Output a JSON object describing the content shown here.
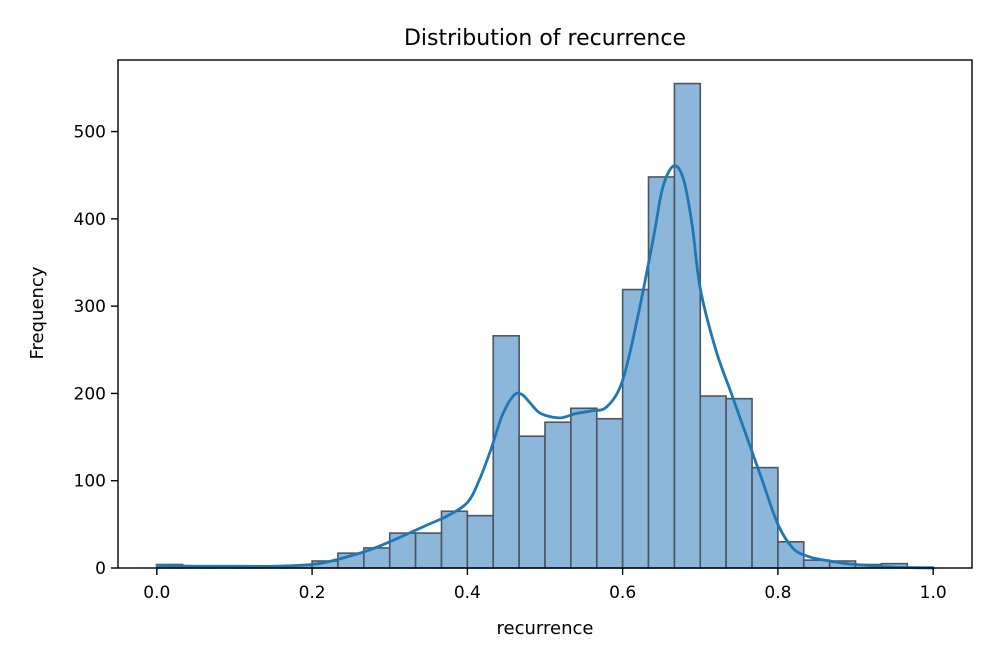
{
  "chart_data": {
    "type": "bar",
    "subtype": "histogram-with-kde",
    "title": "Distribution of recurrence",
    "xlabel": "recurrence",
    "ylabel": "Frequency",
    "xlim": [
      -0.05,
      1.05
    ],
    "ylim": [
      0,
      582
    ],
    "xticks": [
      0.0,
      0.2,
      0.4,
      0.6,
      0.8,
      1.0
    ],
    "xtick_labels": [
      "0.0",
      "0.2",
      "0.4",
      "0.6",
      "0.8",
      "1.0"
    ],
    "yticks": [
      0,
      100,
      200,
      300,
      400,
      500
    ],
    "ytick_labels": [
      "0",
      "100",
      "200",
      "300",
      "400",
      "500"
    ],
    "grid": false,
    "bar_color": "#8db7da",
    "bar_edge_color": "#4d5560",
    "kde_color": "#1f77b4",
    "bins": [
      {
        "x0": 0.0,
        "x1": 0.0333,
        "count": 4
      },
      {
        "x0": 0.0333,
        "x1": 0.0667,
        "count": 2
      },
      {
        "x0": 0.0667,
        "x1": 0.1,
        "count": 1
      },
      {
        "x0": 0.1,
        "x1": 0.1333,
        "count": 1
      },
      {
        "x0": 0.1333,
        "x1": 0.1667,
        "count": 1
      },
      {
        "x0": 0.1667,
        "x1": 0.2,
        "count": 3
      },
      {
        "x0": 0.2,
        "x1": 0.2333,
        "count": 8
      },
      {
        "x0": 0.2333,
        "x1": 0.2667,
        "count": 17
      },
      {
        "x0": 0.2667,
        "x1": 0.3,
        "count": 23
      },
      {
        "x0": 0.3,
        "x1": 0.3333,
        "count": 40
      },
      {
        "x0": 0.3333,
        "x1": 0.3667,
        "count": 40
      },
      {
        "x0": 0.3667,
        "x1": 0.4,
        "count": 65
      },
      {
        "x0": 0.4,
        "x1": 0.4333,
        "count": 60
      },
      {
        "x0": 0.4333,
        "x1": 0.4667,
        "count": 266
      },
      {
        "x0": 0.4667,
        "x1": 0.5,
        "count": 151
      },
      {
        "x0": 0.5,
        "x1": 0.5333,
        "count": 167
      },
      {
        "x0": 0.5333,
        "x1": 0.5667,
        "count": 183
      },
      {
        "x0": 0.5667,
        "x1": 0.6,
        "count": 171
      },
      {
        "x0": 0.6,
        "x1": 0.6333,
        "count": 319
      },
      {
        "x0": 0.6333,
        "x1": 0.6667,
        "count": 448
      },
      {
        "x0": 0.6667,
        "x1": 0.7,
        "count": 555
      },
      {
        "x0": 0.7,
        "x1": 0.7333,
        "count": 197
      },
      {
        "x0": 0.7333,
        "x1": 0.7667,
        "count": 194
      },
      {
        "x0": 0.7667,
        "x1": 0.8,
        "count": 115
      },
      {
        "x0": 0.8,
        "x1": 0.8333,
        "count": 30
      },
      {
        "x0": 0.8333,
        "x1": 0.8667,
        "count": 9
      },
      {
        "x0": 0.8667,
        "x1": 0.9,
        "count": 8
      },
      {
        "x0": 0.9,
        "x1": 0.9333,
        "count": 4
      },
      {
        "x0": 0.9333,
        "x1": 0.9667,
        "count": 5
      },
      {
        "x0": 0.9667,
        "x1": 1.0,
        "count": 1
      }
    ],
    "kde": {
      "x": [
        0.0,
        0.05,
        0.1,
        0.15,
        0.2,
        0.225,
        0.25,
        0.275,
        0.3,
        0.325,
        0.35,
        0.375,
        0.4,
        0.415,
        0.43,
        0.445,
        0.46,
        0.47,
        0.48,
        0.49,
        0.5,
        0.52,
        0.54,
        0.56,
        0.58,
        0.6,
        0.62,
        0.64,
        0.65,
        0.66,
        0.67,
        0.68,
        0.69,
        0.7,
        0.72,
        0.74,
        0.76,
        0.78,
        0.8,
        0.82,
        0.84,
        0.86,
        0.88,
        0.9,
        0.95,
        1.0
      ],
      "y": [
        3,
        2,
        2,
        2,
        4,
        8,
        14,
        21,
        30,
        40,
        50,
        60,
        75,
        100,
        135,
        175,
        198,
        199,
        190,
        180,
        175,
        172,
        177,
        180,
        185,
        215,
        290,
        380,
        430,
        455,
        460,
        440,
        390,
        320,
        250,
        200,
        150,
        100,
        50,
        22,
        13,
        9,
        6,
        4,
        1,
        0
      ]
    }
  }
}
